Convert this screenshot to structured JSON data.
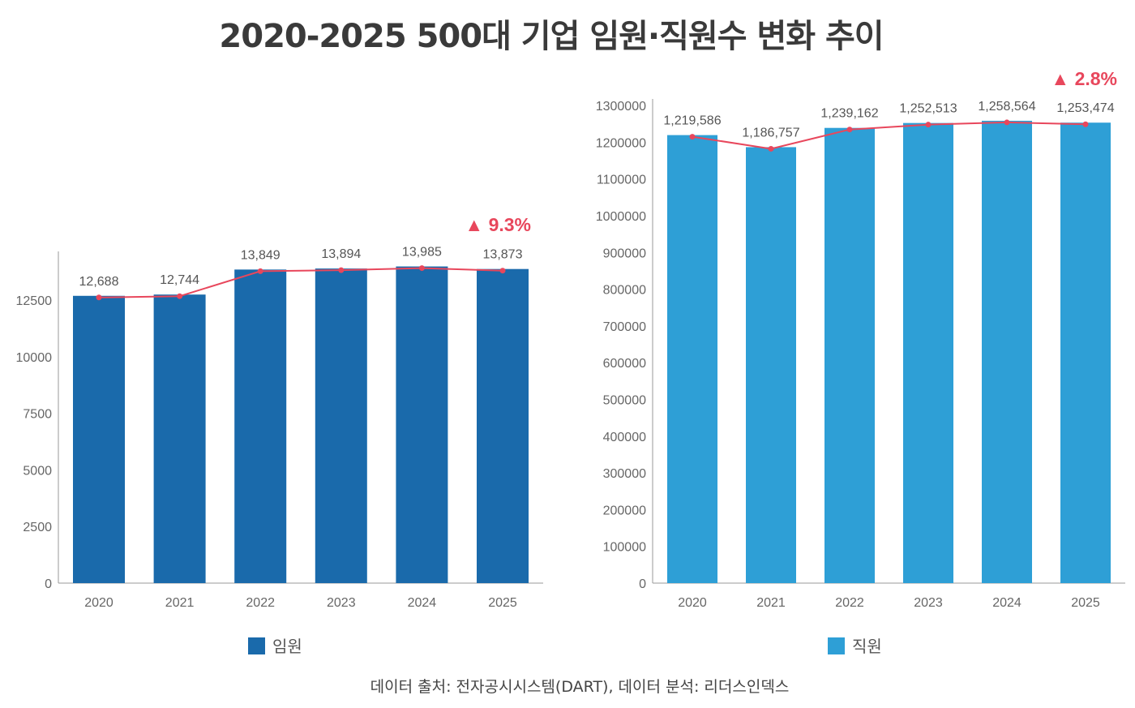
{
  "title": "2020-2025  500대 기업 임원·직원수 변화  추이",
  "source": "데이터 출처: 전자공시시스템(DART), 데이터 분석: 리더스인덱스",
  "chart_data": [
    {
      "type": "bar",
      "categories": [
        "2020",
        "2021",
        "2022",
        "2023",
        "2024",
        "2025"
      ],
      "series": [
        {
          "name": "임원",
          "values": [
            12688,
            12744,
            13849,
            13894,
            13985,
            13873
          ],
          "color": "#1a6aab"
        }
      ],
      "overlay_line": {
        "values": [
          12688,
          12744,
          13849,
          13894,
          13985,
          13873
        ],
        "color": "#e8475c"
      },
      "data_labels": [
        "12,688",
        "12,744",
        "13,849",
        "13,894",
        "13,985",
        "13,873"
      ],
      "yticks": [
        0,
        2500,
        5000,
        7500,
        10000,
        12500
      ],
      "ylim": [
        0,
        14650
      ],
      "change_annotation": "▲ 9.3%",
      "legend": "bottom",
      "grid": false
    },
    {
      "type": "bar",
      "categories": [
        "2020",
        "2021",
        "2022",
        "2023",
        "2024",
        "2025"
      ],
      "series": [
        {
          "name": "직원",
          "values": [
            1219586,
            1186757,
            1239162,
            1252513,
            1258564,
            1253474
          ],
          "color": "#2e9fd6"
        }
      ],
      "overlay_line": {
        "values": [
          1219586,
          1186757,
          1239162,
          1252513,
          1258564,
          1253474
        ],
        "color": "#e8475c"
      },
      "data_labels": [
        "1,219,586",
        "1,186,757",
        "1,239,162",
        "1,252,513",
        "1,258,564",
        "1,253,474"
      ],
      "yticks": [
        0,
        100000,
        200000,
        300000,
        400000,
        500000,
        600000,
        700000,
        800000,
        900000,
        1000000,
        1100000,
        1200000,
        1300000
      ],
      "ylim": [
        0,
        1318000
      ],
      "change_annotation": "▲ 2.8%",
      "legend": "bottom",
      "grid": false
    }
  ]
}
